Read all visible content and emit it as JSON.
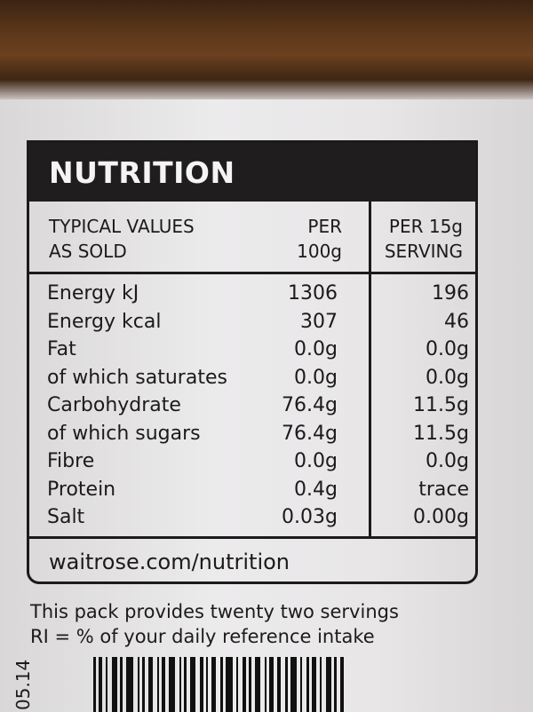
{
  "title": "NUTRITION",
  "header": {
    "col0_line1": "TYPICAL VALUES",
    "col0_line2": "AS SOLD",
    "col1_line1": "PER",
    "col1_line2": "100g",
    "col2_line1": "PER 15g",
    "col2_line2": "SERVING"
  },
  "rows": [
    {
      "name": "Energy kJ",
      "per100": "1306",
      "serving": "196"
    },
    {
      "name": "Energy kcal",
      "per100": "307",
      "serving": "46"
    },
    {
      "name": "Fat",
      "per100": "0.0g",
      "serving": "0.0g"
    },
    {
      "name": "of which saturates",
      "per100": "0.0g",
      "serving": "0.0g"
    },
    {
      "name": "Carbohydrate",
      "per100": "76.4g",
      "serving": "11.5g"
    },
    {
      "name": "of which sugars",
      "per100": "76.4g",
      "serving": "11.5g"
    },
    {
      "name": "Fibre",
      "per100": "0.0g",
      "serving": "0.0g"
    },
    {
      "name": "Protein",
      "per100": "0.4g",
      "serving": "trace"
    },
    {
      "name": "Salt",
      "per100": "0.03g",
      "serving": "0.00g"
    }
  ],
  "url": "waitrose.com/nutrition",
  "notes": [
    "This pack provides twenty two servings",
    "RI = % of your daily reference intake"
  ],
  "date_code": "05.14"
}
